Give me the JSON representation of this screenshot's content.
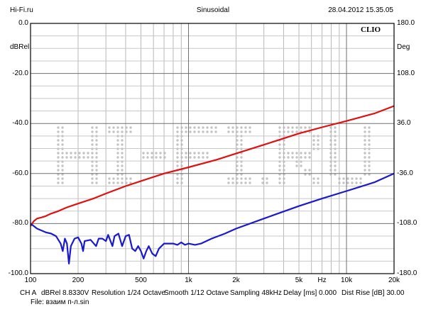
{
  "header": {
    "site": "Hi-Fi.ru",
    "mode": "Sinusoidal",
    "datetime": "28.04.2012 15.35.05"
  },
  "brand": "CLIO",
  "watermark": "Hi-Fi.ru",
  "left_axis": {
    "unit": "dBRel",
    "ticks": [
      "0.0",
      "-20.0",
      "-40.0",
      "-60.0",
      "-80.0",
      "-100.0"
    ]
  },
  "right_axis": {
    "unit": "Deg",
    "ticks": [
      "180.0",
      "108.0",
      "36.0",
      "-36.0",
      "-108.0",
      "-180.0"
    ]
  },
  "x_ticks": [
    "100",
    "200",
    "500",
    "1k",
    "2k",
    "5k",
    "Hz",
    "10k",
    "20k"
  ],
  "footer": {
    "channel": "CH A",
    "level": "dBRel 8.8330V",
    "resolution": "Resolution 1/24 Octave",
    "smooth": "Smooth 1/12 Octave",
    "sampling": "Sampling 48kHz",
    "delay": "Delay [ms] 0.000",
    "dist_rise": "Dist Rise [dB] 30.00",
    "file": "File: взаим п-л.sin"
  },
  "chart_data": {
    "type": "line",
    "title": "",
    "xlabel": "Hz",
    "ylabel": "dBRel",
    "y2label": "Deg",
    "x_scale": "log",
    "xlim": [
      100,
      20000
    ],
    "ylim": [
      -100,
      0
    ],
    "y2lim": [
      -180,
      180
    ],
    "grid": true,
    "series": [
      {
        "color": "#e01010",
        "points": [
          [
            100,
            -81
          ],
          [
            105,
            -79
          ],
          [
            110,
            -78
          ],
          [
            118,
            -77.5
          ],
          [
            125,
            -77
          ],
          [
            135,
            -76
          ],
          [
            150,
            -75
          ],
          [
            170,
            -73.5
          ],
          [
            200,
            -72
          ],
          [
            250,
            -70
          ],
          [
            300,
            -68
          ],
          [
            400,
            -65
          ],
          [
            500,
            -63
          ],
          [
            700,
            -60
          ],
          [
            1000,
            -57.5
          ],
          [
            1500,
            -54.5
          ],
          [
            2000,
            -52
          ],
          [
            3000,
            -48.5
          ],
          [
            5000,
            -44
          ],
          [
            7000,
            -41.5
          ],
          [
            10000,
            -39
          ],
          [
            15000,
            -36
          ],
          [
            20000,
            -33
          ]
        ]
      },
      {
        "color": "#1a1acc",
        "points": [
          [
            100,
            -80
          ],
          [
            110,
            -82
          ],
          [
            125,
            -83.5
          ],
          [
            135,
            -84
          ],
          [
            145,
            -85
          ],
          [
            155,
            -88
          ],
          [
            160,
            -91
          ],
          [
            165,
            -86
          ],
          [
            170,
            -88
          ],
          [
            175,
            -96
          ],
          [
            180,
            -89
          ],
          [
            190,
            -86
          ],
          [
            200,
            -85.5
          ],
          [
            210,
            -88
          ],
          [
            215,
            -91
          ],
          [
            220,
            -87
          ],
          [
            240,
            -86.5
          ],
          [
            260,
            -89
          ],
          [
            270,
            -86
          ],
          [
            285,
            -86
          ],
          [
            300,
            -87
          ],
          [
            310,
            -84.5
          ],
          [
            330,
            -89
          ],
          [
            340,
            -85
          ],
          [
            360,
            -84
          ],
          [
            380,
            -89
          ],
          [
            400,
            -85
          ],
          [
            420,
            -84.5
          ],
          [
            440,
            -90
          ],
          [
            460,
            -91
          ],
          [
            480,
            -89
          ],
          [
            500,
            -91
          ],
          [
            520,
            -94
          ],
          [
            540,
            -91
          ],
          [
            560,
            -89
          ],
          [
            590,
            -92
          ],
          [
            620,
            -93
          ],
          [
            650,
            -90
          ],
          [
            700,
            -88
          ],
          [
            800,
            -88
          ],
          [
            850,
            -88.5
          ],
          [
            900,
            -87.5
          ],
          [
            950,
            -88.5
          ],
          [
            1000,
            -88
          ],
          [
            1100,
            -88.5
          ],
          [
            1200,
            -88
          ],
          [
            1400,
            -86
          ],
          [
            1700,
            -84
          ],
          [
            2000,
            -82
          ],
          [
            3000,
            -78
          ],
          [
            5000,
            -73
          ],
          [
            7000,
            -70
          ],
          [
            10000,
            -67
          ],
          [
            15000,
            -63.5
          ],
          [
            20000,
            -60
          ]
        ]
      }
    ]
  }
}
